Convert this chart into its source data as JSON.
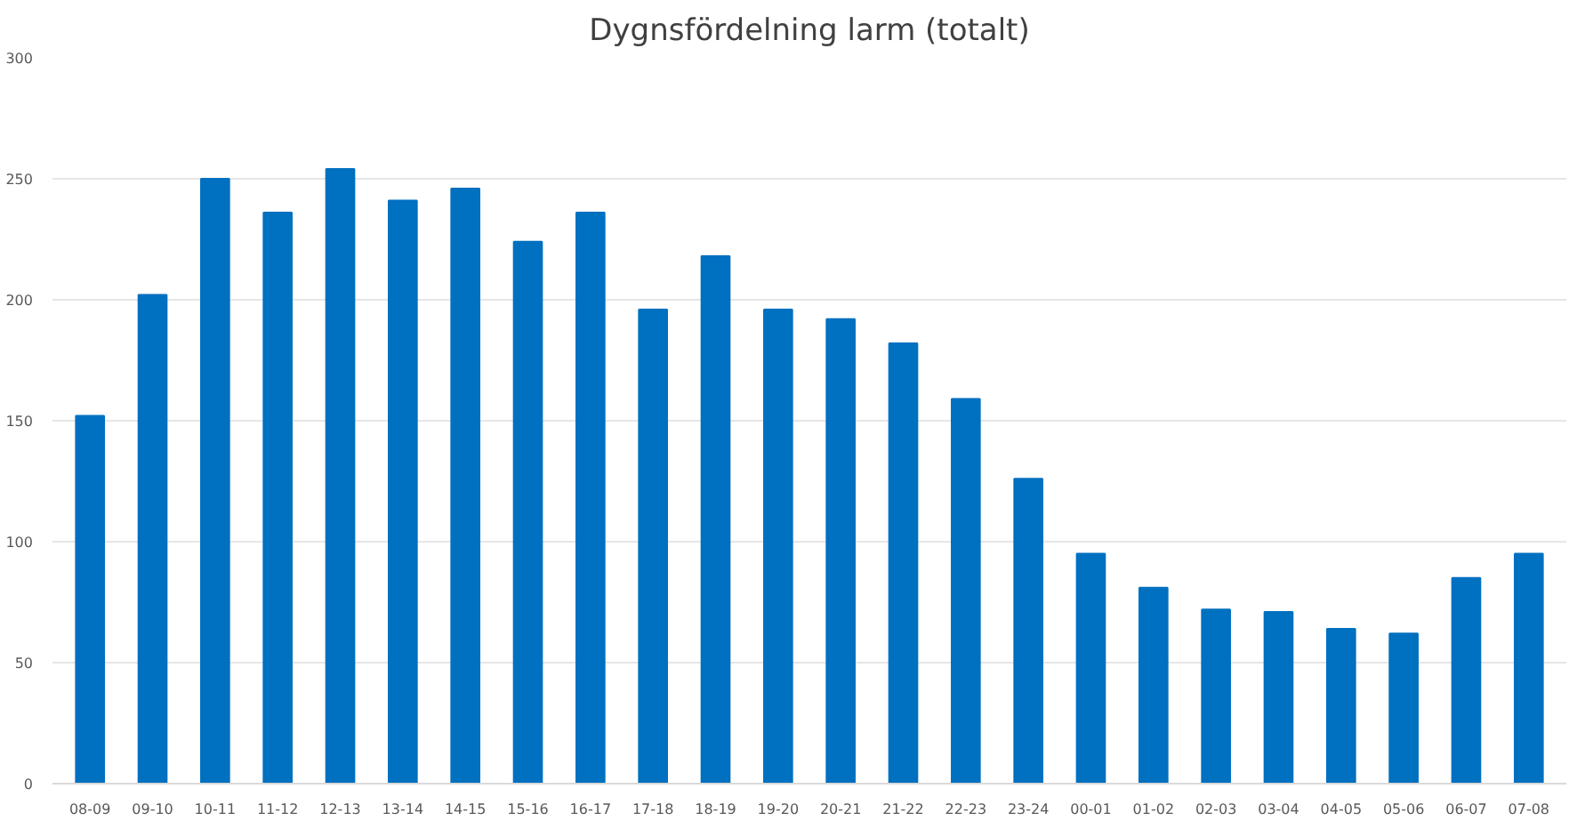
{
  "chart_data": {
    "type": "bar",
    "title": "Dygnsfördelning larm (totalt)",
    "categories": [
      "08-09",
      "09-10",
      "10-11",
      "11-12",
      "12-13",
      "13-14",
      "14-15",
      "15-16",
      "16-17",
      "17-18",
      "18-19",
      "19-20",
      "20-21",
      "21-22",
      "22-23",
      "23-24",
      "00-01",
      "01-02",
      "02-03",
      "03-04",
      "04-05",
      "05-06",
      "06-07",
      "07-08"
    ],
    "values": [
      152,
      202,
      250,
      236,
      254,
      241,
      246,
      224,
      236,
      196,
      218,
      196,
      192,
      182,
      159,
      126,
      95,
      81,
      72,
      71,
      64,
      62,
      85,
      95
    ],
    "color": "#0070c0",
    "ylim": [
      0,
      300
    ],
    "yticks": [
      0,
      50,
      100,
      150,
      200,
      250,
      300
    ],
    "grid": "y"
  }
}
